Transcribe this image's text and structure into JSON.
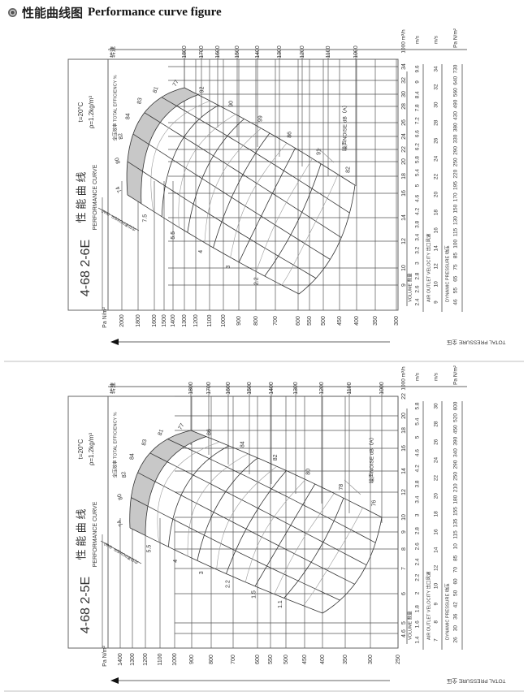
{
  "header": {
    "icon": "bullseye-icon",
    "title_cn": "性能曲线图",
    "title_en": "Performance curve figure"
  },
  "chart_data": [
    {
      "type": "line",
      "model": "4-68 2-6E",
      "title_cn": "性 能 曲 线",
      "title_en": "PERFORMANCE CURVE",
      "conditions": [
        "t=20°C",
        "ρ=1.2kg/m³"
      ],
      "speed_label": "转速",
      "efficiency_label": "全压效率 TOTAL EFFICIENCY %",
      "noise_label": "噪声NOISE dB（A）",
      "power_label": "内功率POWER（kW）",
      "pressure_unit": "Pa N/m²",
      "pressure_axis_label": "TOTAL PRESSURE 全压",
      "pressure_ticks": [
        "2000",
        "1800",
        "1600",
        "1500",
        "1400",
        "1300",
        "1200",
        "1100",
        "1000",
        "900",
        "800",
        "700",
        "600",
        "550",
        "500",
        "450",
        "400",
        "350",
        "300"
      ],
      "speed_ticks": [
        "1800",
        "1700",
        "1600",
        "1500",
        "1400",
        "1300",
        "1200",
        "1100",
        "1000"
      ],
      "volume_unit": "1000 m³/h",
      "volume_label": "VOLUME 数量",
      "volume_ticks": [
        "9",
        "10",
        "12",
        "14",
        "16",
        "18",
        "20",
        "22",
        "24",
        "26",
        "28",
        "30",
        "32",
        "34"
      ],
      "velocity_unit": "m/s",
      "velocity_ticks": [
        "2.4",
        "2.6",
        "2.8",
        "3",
        "3.2",
        "3.4",
        "3.8",
        "4.2",
        "4.6",
        "5",
        "5.4",
        "5.8",
        "6.2",
        "6.6",
        "7.2",
        "7.8",
        "8.4",
        "9",
        "9.6"
      ],
      "outlet_velocity_unit": "m/s",
      "outlet_velocity_label": "AIR OUTLET VELOCITY 出口风速",
      "outlet_velocity_ticks": [
        "9",
        "10",
        "12",
        "14",
        "16",
        "18",
        "20",
        "22",
        "24",
        "26",
        "28",
        "30",
        "32",
        "34"
      ],
      "dynamic_pressure_unit": "Pa N/m²",
      "dynamic_pressure_label": "DYNAMIC PRESSURE 动压",
      "dynamic_pressure_ticks": [
        "46",
        "55",
        "65",
        "75",
        "85",
        "100",
        "115",
        "130",
        "150",
        "170",
        "195",
        "220",
        "250",
        "290",
        "330",
        "380",
        "430",
        "490",
        "560",
        "640",
        "730"
      ],
      "efficiency_values": [
        "74",
        "80",
        "82",
        "84",
        "83",
        "81",
        "77"
      ],
      "noise_values": [
        "92",
        "90",
        "99",
        "86",
        "91",
        "82"
      ],
      "power_values": [
        "7.5",
        "5.5",
        "4",
        "3",
        "2.2"
      ],
      "shade_color": "#c8c8c8"
    },
    {
      "type": "line",
      "model": "4-68 2-5E",
      "title_cn": "性 能 曲 线",
      "title_en": "PERFORMANCE CURVE",
      "conditions": [
        "t=20°C",
        "ρ=1.2kg/m³"
      ],
      "speed_label": "转速",
      "efficiency_label": "全压效率 TOTAL EFFICIENCY %",
      "noise_label": "噪声NOISE dB（A）",
      "power_label": "内功率POWER（kW）",
      "pressure_unit": "Pa N/m²",
      "pressure_axis_label": "TOTAL PRESSURE 全压",
      "pressure_ticks": [
        "1400",
        "1300",
        "1200",
        "1100",
        "1000",
        "900",
        "800",
        "700",
        "600",
        "550",
        "500",
        "450",
        "400",
        "350",
        "300",
        "250"
      ],
      "speed_ticks": [
        "1800",
        "1700",
        "1600",
        "1500",
        "1400",
        "1300",
        "1200",
        "1100",
        "1000"
      ],
      "volume_unit": "1000 m³/h",
      "volume_label": "VOLUME 数量",
      "volume_ticks": [
        "4.6",
        "5",
        "6",
        "7",
        "8",
        "9",
        "10",
        "12",
        "14",
        "16",
        "18",
        "20",
        "22"
      ],
      "velocity_unit": "m/s",
      "velocity_ticks": [
        "1.4",
        "1.6",
        "1.8",
        "2",
        "2.2",
        "2.4",
        "2.6",
        "2.8",
        "3",
        "3.4",
        "3.8",
        "4.2",
        "4.6",
        "5",
        "5.4",
        "5.8"
      ],
      "outlet_velocity_unit": "m/s",
      "outlet_velocity_label": "AIR OUTLET VELOCITY 出口风速",
      "outlet_velocity_ticks": [
        "7",
        "8",
        "9",
        "10",
        "12",
        "14",
        "16",
        "18",
        "20",
        "22",
        "24",
        "26",
        "28",
        "30"
      ],
      "dynamic_pressure_unit": "Pa N/m²",
      "dynamic_pressure_label": "DYNAMIC PRESSURE 动压",
      "dynamic_pressure_ticks": [
        "26",
        "30",
        "36",
        "42",
        "50",
        "60",
        "70",
        "85",
        "10",
        "115",
        "135",
        "155",
        "180",
        "210",
        "250",
        "290",
        "340",
        "390",
        "450",
        "520",
        "600"
      ],
      "efficiency_values": [
        "74",
        "80",
        "82",
        "84",
        "83",
        "81",
        "77"
      ],
      "noise_values": [
        "86",
        "84",
        "82",
        "80",
        "78",
        "76"
      ],
      "power_values": [
        "5.5",
        "4",
        "3",
        "2.2",
        "1.5",
        "1.1"
      ],
      "shade_color": "#c8c8c8"
    }
  ]
}
